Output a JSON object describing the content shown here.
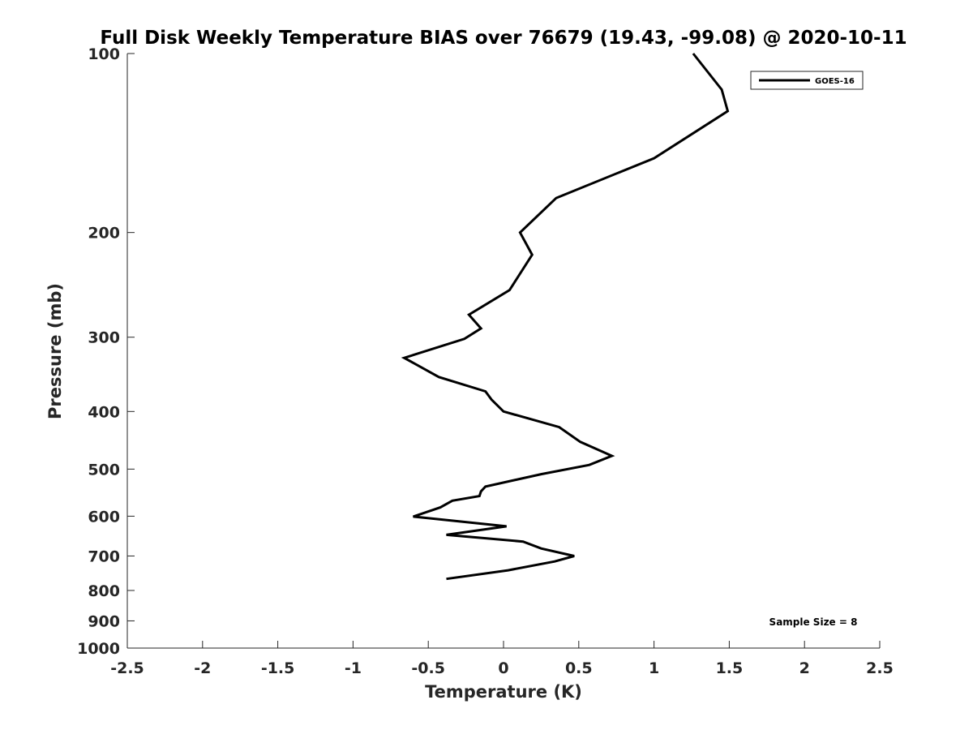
{
  "chart_data": {
    "type": "line",
    "title": "Full Disk Weekly Temperature BIAS over 76679 (19.43, -99.08) @ 2020-10-11",
    "xlabel": "Temperature (K)",
    "ylabel": "Pressure (mb)",
    "xlim": [
      -2.5,
      2.5
    ],
    "ylim": [
      1000,
      100
    ],
    "y_scale": "log",
    "y_reversed": true,
    "grid": false,
    "legend_position": "top-right",
    "x_ticks": [
      -2.5,
      -2,
      -1.5,
      -1,
      -0.5,
      0,
      0.5,
      1,
      1.5,
      2,
      2.5
    ],
    "x_tick_labels": [
      "-2.5",
      "-2",
      "-1.5",
      "-1",
      "-0.5",
      "0",
      "0.5",
      "1",
      "1.5",
      "2",
      "2.5"
    ],
    "y_ticks": [
      100,
      200,
      300,
      400,
      500,
      600,
      700,
      800,
      900,
      1000
    ],
    "y_tick_labels": [
      "100",
      "200",
      "300",
      "400",
      "500",
      "600",
      "700",
      "800",
      "900",
      "1000"
    ],
    "series": [
      {
        "name": "GOES-16",
        "color": "#000000",
        "x": [
          1.26,
          1.45,
          1.49,
          1.0,
          0.35,
          0.11,
          0.19,
          0.04,
          -0.23,
          -0.15,
          -0.26,
          -0.66,
          -0.43,
          -0.12,
          -0.08,
          0.0,
          0.37,
          0.51,
          0.72,
          0.57,
          0.25,
          -0.12,
          -0.15,
          -0.16,
          -0.34,
          -0.42,
          -0.6,
          0.02,
          -0.38,
          0.13,
          0.25,
          0.47,
          0.34,
          0.03,
          -0.38
        ],
        "y": [
          100,
          115,
          125,
          150,
          175,
          200,
          218,
          250,
          275,
          290,
          302,
          325,
          350,
          370,
          382,
          400,
          425,
          450,
          475,
          492,
          510,
          535,
          545,
          555,
          565,
          580,
          601,
          624,
          645,
          662,
          680,
          700,
          715,
          740,
          765
        ]
      }
    ],
    "annotations": [
      "Sample Size = 8"
    ]
  }
}
